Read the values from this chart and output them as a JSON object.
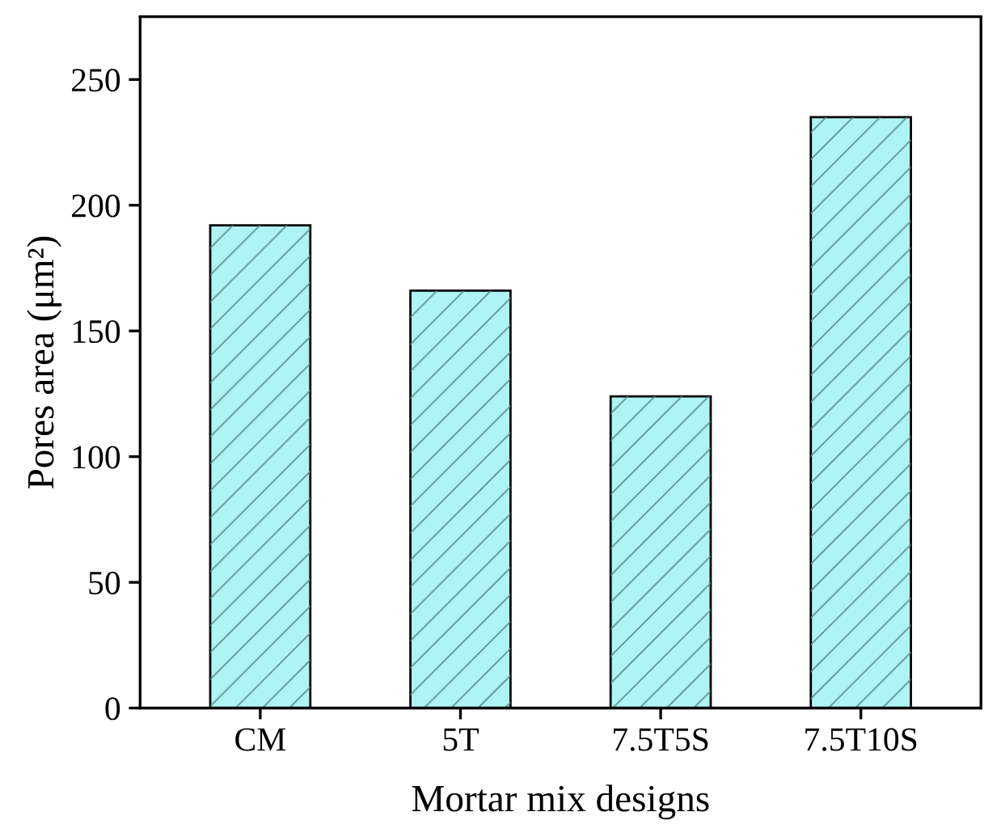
{
  "chart_data": {
    "type": "bar",
    "xlabel": "Mortar mix designs",
    "ylabel": "Pores area (μm²)",
    "categories": [
      "CM",
      "5T",
      "7.5T5S",
      "7.5T10S"
    ],
    "values": [
      192,
      166,
      124,
      235
    ],
    "color": "#aef4f4",
    "ylim": [
      0,
      275
    ],
    "yticks": [
      0,
      50,
      100,
      150,
      200,
      250
    ],
    "grid": false,
    "legend": false
  }
}
